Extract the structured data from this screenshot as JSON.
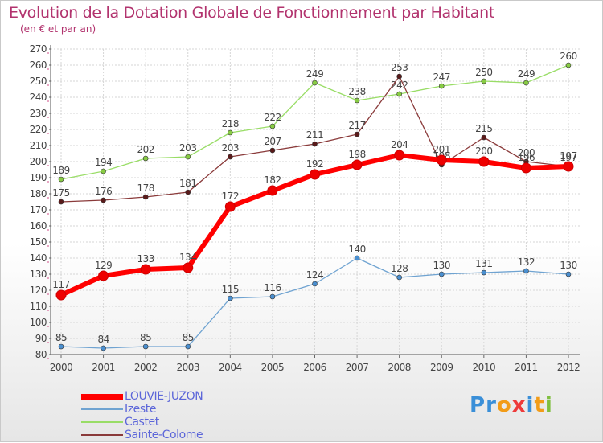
{
  "title": "Evolution de la Dotation Globale de Fonctionnement par Habitant",
  "subtitle": "(en € et par an)",
  "logo": {
    "text": "Proxiti",
    "colors": [
      "#3a8fd8",
      "#3a8fd8",
      "#f29c18",
      "#ee3a3a",
      "#3a8fd8",
      "#f29c18",
      "#7fbf3f"
    ]
  },
  "chart_data": {
    "type": "line",
    "x": [
      2000,
      2001,
      2002,
      2003,
      2004,
      2005,
      2006,
      2007,
      2008,
      2009,
      2010,
      2011,
      2012
    ],
    "ylim": [
      80,
      270
    ],
    "yticks": [
      80,
      90,
      100,
      110,
      120,
      130,
      140,
      150,
      160,
      170,
      180,
      190,
      200,
      210,
      220,
      230,
      240,
      250,
      260,
      270
    ],
    "grid": true,
    "legend_position": "bottom-left",
    "series": [
      {
        "name": "Castet",
        "color": "#99dd66",
        "marker": "#88cc44",
        "width": 1.3,
        "radius": 3,
        "values": [
          189,
          194,
          202,
          203,
          218,
          222,
          249,
          238,
          242,
          247,
          250,
          249,
          260
        ]
      },
      {
        "name": "Sainte-Colome",
        "color": "#8a3a3a",
        "marker": "#5a1a1a",
        "width": 1.3,
        "radius": 3,
        "values": [
          175,
          176,
          178,
          181,
          203,
          207,
          211,
          217,
          253,
          198,
          215,
          200,
          197
        ]
      },
      {
        "name": "Izeste",
        "color": "#6fa3d1",
        "marker": "#4a8fd0",
        "width": 1.3,
        "radius": 3,
        "values": [
          85,
          84,
          85,
          85,
          115,
          116,
          124,
          140,
          128,
          130,
          131,
          132,
          130
        ]
      },
      {
        "name": "LOUVIE-JUZON",
        "color": "#ff0000",
        "marker": "#ee0000",
        "width": 6,
        "radius": 6,
        "values": [
          117,
          129,
          133,
          134,
          172,
          182,
          192,
          198,
          204,
          201,
          200,
          196,
          197
        ]
      }
    ],
    "legend_order": [
      "LOUVIE-JUZON",
      "Izeste",
      "Castet",
      "Sainte-Colome"
    ]
  }
}
